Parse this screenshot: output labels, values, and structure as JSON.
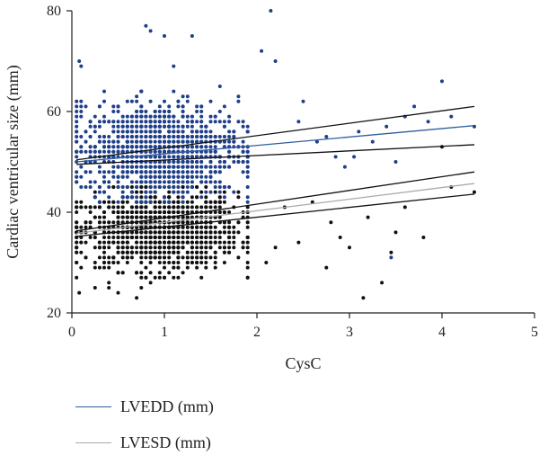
{
  "chart_data": {
    "type": "scatter",
    "title": "",
    "xlabel": "CysC",
    "ylabel": "Cardiac ventricular size (mm)",
    "xlim": [
      0,
      5
    ],
    "ylim": [
      20,
      80
    ],
    "x_ticks": [
      "0",
      "1",
      "2",
      "3",
      "4",
      "5"
    ],
    "y_ticks": [
      "20",
      "40",
      "60",
      "80"
    ],
    "grid": false,
    "legend_position": "bottom-left",
    "series": [
      {
        "name": "LVEDD (mm)",
        "color": "#2f5d9e",
        "point_color": "#1f3f8a",
        "cluster": {
          "x_center": 0.95,
          "x_spread": 0.42,
          "x_min": 0.05,
          "x_max": 1.9,
          "y_center": 52.5,
          "y_spread": 4.5,
          "y_min": 42,
          "y_max": 70,
          "count": 1300
        },
        "outliers": [
          [
            0.8,
            77
          ],
          [
            0.85,
            76
          ],
          [
            1.0,
            75
          ],
          [
            1.3,
            75
          ],
          [
            2.15,
            80
          ],
          [
            2.05,
            72
          ],
          [
            2.2,
            70
          ],
          [
            4.0,
            66
          ],
          [
            4.35,
            57
          ],
          [
            4.1,
            59
          ],
          [
            3.4,
            57
          ],
          [
            3.6,
            59
          ],
          [
            2.45,
            58
          ],
          [
            2.65,
            54
          ],
          [
            2.75,
            55
          ],
          [
            2.85,
            51
          ],
          [
            2.95,
            49
          ],
          [
            3.1,
            56
          ],
          [
            3.25,
            54
          ],
          [
            3.05,
            51
          ],
          [
            3.85,
            58
          ],
          [
            3.5,
            50
          ],
          [
            3.45,
            31
          ],
          [
            0.08,
            70
          ],
          [
            0.1,
            60
          ],
          [
            1.8,
            63
          ],
          [
            2.5,
            62
          ],
          [
            3.7,
            61
          ]
        ],
        "fit": {
          "x": [
            0.05,
            4.35
          ],
          "y": [
            50.0,
            57.2
          ]
        },
        "ci_upper": {
          "x": [
            0.05,
            4.35
          ],
          "y": [
            50.4,
            61.0
          ]
        },
        "ci_lower": {
          "x": [
            0.05,
            4.35
          ],
          "y": [
            49.5,
            53.4
          ]
        }
      },
      {
        "name": "LVESD (mm)",
        "color": "#aaaaaa",
        "point_color": "#111111",
        "cluster": {
          "x_center": 0.95,
          "x_spread": 0.42,
          "x_min": 0.05,
          "x_max": 1.9,
          "y_center": 36.5,
          "y_spread": 3.8,
          "y_min": 23,
          "y_max": 45,
          "count": 1300
        },
        "outliers": [
          [
            3.15,
            23
          ],
          [
            3.35,
            26
          ],
          [
            2.75,
            29
          ],
          [
            3.45,
            32
          ],
          [
            2.45,
            34
          ],
          [
            3.0,
            33
          ],
          [
            3.8,
            35
          ],
          [
            4.1,
            45
          ],
          [
            4.35,
            44
          ],
          [
            2.8,
            38
          ],
          [
            3.2,
            39
          ],
          [
            2.1,
            30
          ],
          [
            2.6,
            42
          ],
          [
            2.3,
            41
          ],
          [
            0.08,
            24
          ],
          [
            0.25,
            25
          ],
          [
            4.0,
            53
          ],
          [
            3.5,
            36
          ],
          [
            2.9,
            35
          ],
          [
            1.9,
            27
          ],
          [
            2.2,
            33
          ],
          [
            3.6,
            41
          ]
        ],
        "fit": {
          "x": [
            0.05,
            4.35
          ],
          "y": [
            35.8,
            45.7
          ]
        },
        "ci_upper": {
          "x": [
            0.05,
            4.35
          ],
          "y": [
            36.3,
            48.0
          ]
        },
        "ci_lower": {
          "x": [
            0.05,
            4.35
          ],
          "y": [
            35.2,
            43.6
          ]
        }
      }
    ]
  }
}
